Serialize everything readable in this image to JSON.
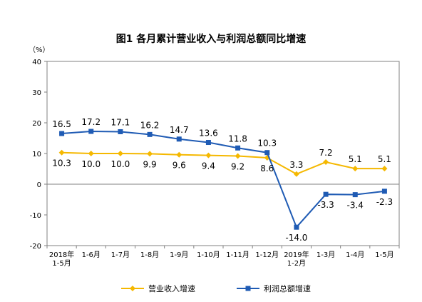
{
  "chart_data": {
    "type": "line",
    "title": "图1 各月累计营业收入与利润总额同比增速",
    "ylabel": "（%）",
    "ylim": [
      -20,
      40
    ],
    "yticks": [
      -20,
      -10,
      0,
      10,
      20,
      30,
      40
    ],
    "categories": [
      [
        "2018年",
        "1-5月"
      ],
      [
        "1-6月"
      ],
      [
        "1-7月"
      ],
      [
        "1-8月"
      ],
      [
        "1-9月"
      ],
      [
        "1-10月"
      ],
      [
        "1-11月"
      ],
      [
        "1-12月"
      ],
      [
        "2019年",
        "1-2月"
      ],
      [
        "1-3月"
      ],
      [
        "1-4月"
      ],
      [
        "1-5月"
      ]
    ],
    "series": [
      {
        "name": "营业收入增速",
        "color": "#F5B800",
        "marker": "diamond",
        "values": [
          10.3,
          10.0,
          10.0,
          9.9,
          9.6,
          9.4,
          9.2,
          8.6,
          3.3,
          7.2,
          5.1,
          5.1
        ],
        "labels": [
          "10.3",
          "10.0",
          "10.0",
          "9.9",
          "9.6",
          "9.4",
          "9.2",
          "8.6",
          "3.3",
          "7.2",
          "5.1",
          "5.1"
        ],
        "label_pos": [
          "below",
          "below",
          "below",
          "below",
          "below",
          "below",
          "below",
          "below",
          "above",
          "above",
          "above",
          "above"
        ]
      },
      {
        "name": "利润总额增速",
        "color": "#1F5BB4",
        "marker": "square",
        "values": [
          16.5,
          17.2,
          17.1,
          16.2,
          14.7,
          13.6,
          11.8,
          10.3,
          -14.0,
          -3.3,
          -3.4,
          -2.3
        ],
        "labels": [
          "16.5",
          "17.2",
          "17.1",
          "16.2",
          "14.7",
          "13.6",
          "11.8",
          "10.3",
          "-14.0",
          "-3.3",
          "-3.4",
          "-2.3"
        ],
        "label_pos": [
          "above",
          "above",
          "above",
          "above",
          "above",
          "above",
          "above",
          "above",
          "below",
          "below",
          "below",
          "below"
        ]
      }
    ],
    "legend": "bottom",
    "grid": false
  }
}
